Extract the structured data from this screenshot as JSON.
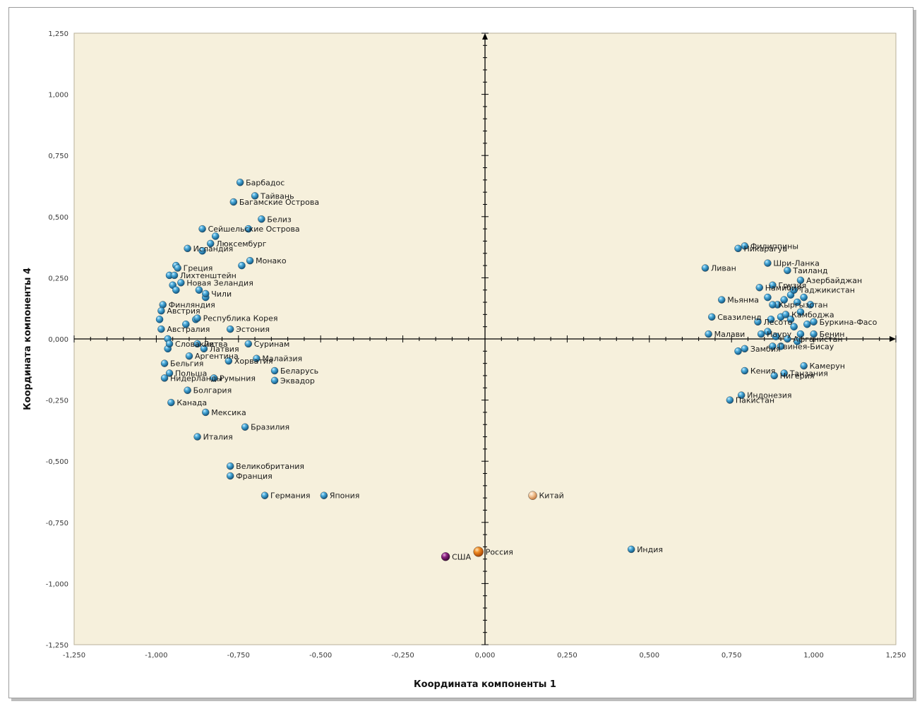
{
  "chart_data": {
    "type": "scatter",
    "title": "",
    "xlabel": "Координата компоненты 1",
    "ylabel": "Координата компоненты 4",
    "xlim": [
      -1.25,
      1.25
    ],
    "ylim": [
      -1.25,
      1.25
    ],
    "x_ticks": [
      "-1,250",
      "-1,000",
      "-0,750",
      "-0,500",
      "-0,250",
      "0,000",
      "0,250",
      "0,500",
      "0,750",
      "1,000",
      "1,250"
    ],
    "y_ticks": [
      "1,250",
      "1,000",
      "0,750",
      "0,500",
      "0,250",
      "0,000",
      "-0,250",
      "-0,500",
      "-0,750",
      "-1,000",
      "-1,250"
    ],
    "grid": false,
    "background_color": "#f6f0dc",
    "colors": {
      "default": "#2a8fc8",
      "russia": "#e67e22",
      "usa": "#7a1a6e",
      "china": "#f2c9a0"
    },
    "points": [
      {
        "name": "Барбадос",
        "x": -0.745,
        "y": 0.64,
        "color": "default"
      },
      {
        "name": "Тайвань",
        "x": -0.7,
        "y": 0.585,
        "color": "default"
      },
      {
        "name": "Багамские Острова",
        "x": -0.765,
        "y": 0.56,
        "color": "default"
      },
      {
        "name": "Белиз",
        "x": -0.68,
        "y": 0.49,
        "color": "default"
      },
      {
        "name": "Сейшельские Острова",
        "x": -0.86,
        "y": 0.45,
        "color": "default"
      },
      {
        "name": "Люксембург",
        "x": -0.835,
        "y": 0.39,
        "color": "default"
      },
      {
        "name": "Исландия",
        "x": -0.905,
        "y": 0.37,
        "color": "default"
      },
      {
        "name": "Монако",
        "x": -0.715,
        "y": 0.32,
        "color": "default"
      },
      {
        "name": "Греция",
        "x": -0.935,
        "y": 0.29,
        "color": "default"
      },
      {
        "name": "Лихтенштейн",
        "x": -0.945,
        "y": 0.26,
        "color": "default"
      },
      {
        "name": "Новая Зеландия",
        "x": -0.925,
        "y": 0.23,
        "color": "default"
      },
      {
        "name": "Чили",
        "x": -0.85,
        "y": 0.185,
        "color": "default"
      },
      {
        "name": "Финляндия",
        "x": -0.98,
        "y": 0.14,
        "color": "default"
      },
      {
        "name": "Австрия",
        "x": -0.985,
        "y": 0.115,
        "color": "default"
      },
      {
        "name": "Республика Корея",
        "x": -0.875,
        "y": 0.085,
        "color": "default"
      },
      {
        "name": "Австралия",
        "x": -0.985,
        "y": 0.04,
        "color": "default"
      },
      {
        "name": "Эстония",
        "x": -0.775,
        "y": 0.04,
        "color": "default"
      },
      {
        "name": "Словакия",
        "x": -0.96,
        "y": -0.02,
        "color": "default"
      },
      {
        "name": "Литва",
        "x": -0.875,
        "y": -0.02,
        "color": "default"
      },
      {
        "name": "Суринам",
        "x": -0.72,
        "y": -0.02,
        "color": "default"
      },
      {
        "name": "Латвия",
        "x": -0.855,
        "y": -0.04,
        "color": "default"
      },
      {
        "name": "Аргентина",
        "x": -0.9,
        "y": -0.07,
        "color": "default"
      },
      {
        "name": "Малайзия",
        "x": -0.695,
        "y": -0.08,
        "color": "default"
      },
      {
        "name": "Хорватия",
        "x": -0.78,
        "y": -0.09,
        "color": "default"
      },
      {
        "name": "Бельгия",
        "x": -0.975,
        "y": -0.1,
        "color": "default"
      },
      {
        "name": "Беларусь",
        "x": -0.64,
        "y": -0.13,
        "color": "default"
      },
      {
        "name": "Польша",
        "x": -0.96,
        "y": -0.14,
        "color": "default"
      },
      {
        "name": "Румыния",
        "x": -0.825,
        "y": -0.16,
        "color": "default"
      },
      {
        "name": "Нидерланды",
        "x": -0.975,
        "y": -0.16,
        "color": "default"
      },
      {
        "name": "Эквадор",
        "x": -0.64,
        "y": -0.17,
        "color": "default"
      },
      {
        "name": "Болгария",
        "x": -0.905,
        "y": -0.21,
        "color": "default"
      },
      {
        "name": "Канада",
        "x": -0.955,
        "y": -0.26,
        "color": "default"
      },
      {
        "name": "Мексика",
        "x": -0.85,
        "y": -0.3,
        "color": "default"
      },
      {
        "name": "Бразилия",
        "x": -0.73,
        "y": -0.36,
        "color": "default"
      },
      {
        "name": "Италия",
        "x": -0.875,
        "y": -0.4,
        "color": "default"
      },
      {
        "name": "Великобритания",
        "x": -0.775,
        "y": -0.52,
        "color": "default"
      },
      {
        "name": "Франция",
        "x": -0.775,
        "y": -0.56,
        "color": "default"
      },
      {
        "name": "Германия",
        "x": -0.67,
        "y": -0.64,
        "color": "default"
      },
      {
        "name": "Япония",
        "x": -0.49,
        "y": -0.64,
        "color": "default"
      },
      {
        "name": "Китай",
        "x": 0.145,
        "y": -0.64,
        "color": "china"
      },
      {
        "name": "Россия",
        "x": -0.02,
        "y": -0.87,
        "color": "russia"
      },
      {
        "name": "США",
        "x": -0.12,
        "y": -0.89,
        "color": "usa"
      },
      {
        "name": "Индия",
        "x": 0.445,
        "y": -0.86,
        "color": "default"
      },
      {
        "name": "Филиппины",
        "x": 0.79,
        "y": 0.38,
        "color": "default"
      },
      {
        "name": "Никарагуа",
        "x": 0.77,
        "y": 0.37,
        "color": "default"
      },
      {
        "name": "Шри-Ланка",
        "x": 0.86,
        "y": 0.31,
        "color": "default"
      },
      {
        "name": "Ливан",
        "x": 0.67,
        "y": 0.29,
        "color": "default"
      },
      {
        "name": "Таиланд",
        "x": 0.92,
        "y": 0.28,
        "color": "default"
      },
      {
        "name": "Азербайджан",
        "x": 0.96,
        "y": 0.24,
        "color": "default"
      },
      {
        "name": "Намибия",
        "x": 0.835,
        "y": 0.21,
        "color": "default"
      },
      {
        "name": "Грузия",
        "x": 0.875,
        "y": 0.22,
        "color": "default"
      },
      {
        "name": "Таджикистан",
        "x": 0.94,
        "y": 0.2,
        "color": "default"
      },
      {
        "name": "Мьянма",
        "x": 0.72,
        "y": 0.16,
        "color": "default"
      },
      {
        "name": "Кыргызстан",
        "x": 0.875,
        "y": 0.14,
        "color": "default"
      },
      {
        "name": "Камбоджа",
        "x": 0.915,
        "y": 0.1,
        "color": "default"
      },
      {
        "name": "Свазиленд",
        "x": 0.69,
        "y": 0.09,
        "color": "default"
      },
      {
        "name": "Лесото",
        "x": 0.83,
        "y": 0.07,
        "color": "default"
      },
      {
        "name": "Буркина-Фасо",
        "x": 1.0,
        "y": 0.07,
        "color": "default"
      },
      {
        "name": "Малави",
        "x": 0.68,
        "y": 0.02,
        "color": "default"
      },
      {
        "name": "Науру",
        "x": 0.84,
        "y": 0.02,
        "color": "default"
      },
      {
        "name": "Бенин",
        "x": 1.0,
        "y": 0.02,
        "color": "default"
      },
      {
        "name": "Афганистан",
        "x": 0.92,
        "y": 0.0,
        "color": "default"
      },
      {
        "name": "Гвинея-Бисау",
        "x": 0.875,
        "y": -0.03,
        "color": "default"
      },
      {
        "name": "Замбия",
        "x": 0.79,
        "y": -0.04,
        "color": "default"
      },
      {
        "name": "Камерун",
        "x": 0.97,
        "y": -0.11,
        "color": "default"
      },
      {
        "name": "Кения",
        "x": 0.79,
        "y": -0.13,
        "color": "default"
      },
      {
        "name": "Танзания",
        "x": 0.91,
        "y": -0.14,
        "color": "default"
      },
      {
        "name": "Нигерия",
        "x": 0.88,
        "y": -0.15,
        "color": "default"
      },
      {
        "name": "Индонезия",
        "x": 0.78,
        "y": -0.23,
        "color": "default"
      },
      {
        "name": "Пакистан",
        "x": 0.745,
        "y": -0.25,
        "color": "default"
      }
    ],
    "unlabeled_points": [
      [
        -0.82,
        0.42
      ],
      [
        -0.72,
        0.45
      ],
      [
        -0.86,
        0.36
      ],
      [
        -0.74,
        0.3
      ],
      [
        -0.94,
        0.3
      ],
      [
        -0.95,
        0.22
      ],
      [
        -0.94,
        0.2
      ],
      [
        -0.87,
        0.2
      ],
      [
        -0.99,
        0.08
      ],
      [
        -0.965,
        0.0
      ],
      [
        -0.965,
        -0.04
      ],
      [
        -0.91,
        0.06
      ],
      [
        -0.88,
        0.08
      ],
      [
        -0.85,
        0.17
      ],
      [
        -0.96,
        0.26
      ],
      [
        0.87,
        0.08
      ],
      [
        0.86,
        0.17
      ],
      [
        0.89,
        0.14
      ],
      [
        0.91,
        0.16
      ],
      [
        0.93,
        0.18
      ],
      [
        0.95,
        0.15
      ],
      [
        0.97,
        0.17
      ],
      [
        0.99,
        0.14
      ],
      [
        0.96,
        0.11
      ],
      [
        0.93,
        0.08
      ],
      [
        0.9,
        0.09
      ],
      [
        0.94,
        0.05
      ],
      [
        0.98,
        0.06
      ],
      [
        0.86,
        0.03
      ],
      [
        0.885,
        0.01
      ],
      [
        0.96,
        0.02
      ],
      [
        0.9,
        -0.03
      ],
      [
        0.77,
        -0.05
      ],
      [
        0.95,
        -0.01
      ]
    ]
  }
}
